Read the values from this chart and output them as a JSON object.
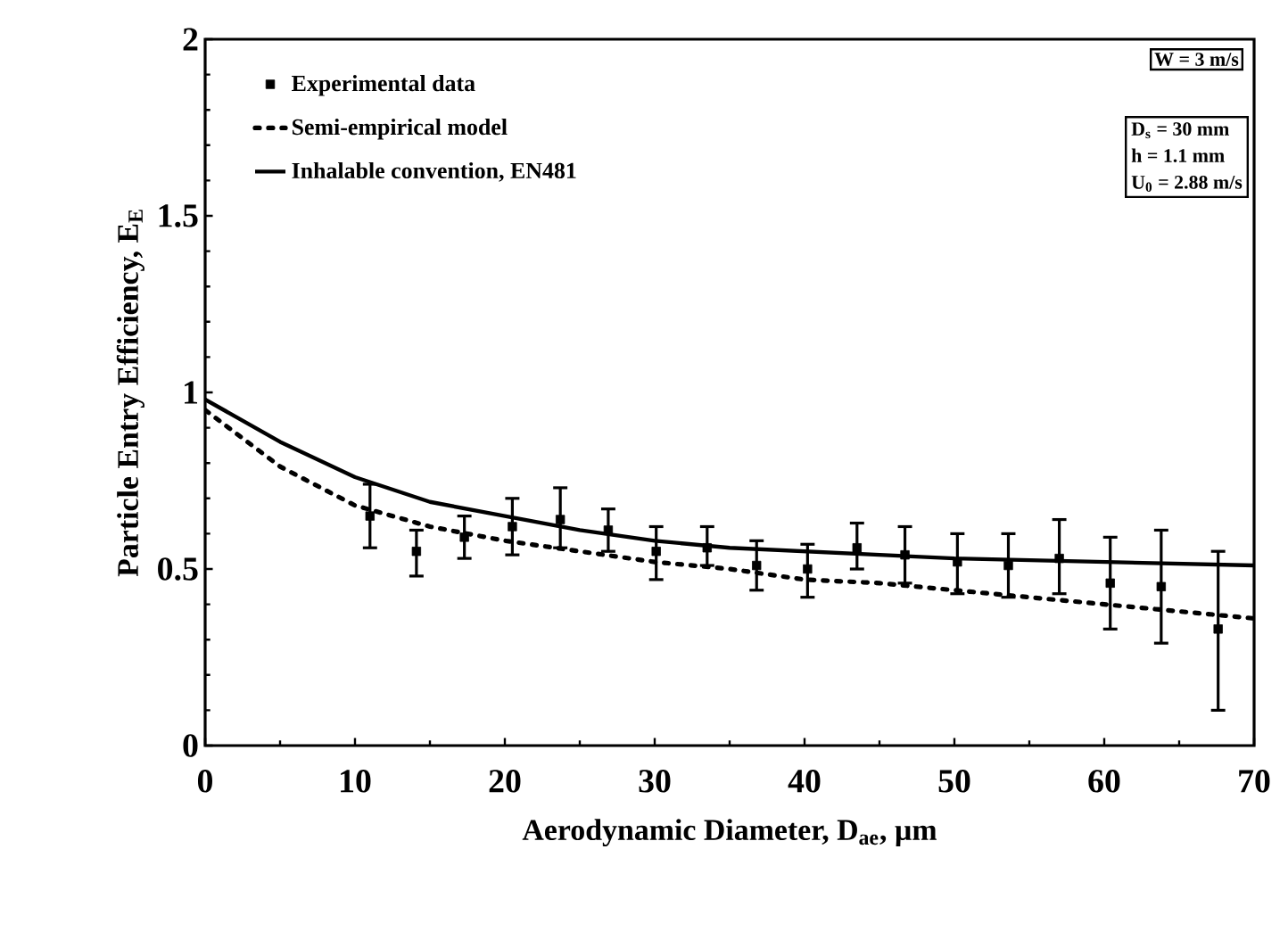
{
  "chart_data": {
    "type": "line",
    "xlabel": "Aerodynamic Diameter, D$_{ae}$, µm",
    "ylabel": "Particle Entry Efficiency, E$_{E}$",
    "annotations": [
      "W = 3 m/s",
      "D$_{s}$ = 30 mm",
      "h = 1.1 mm",
      "U$_{0}$ = 2.88 m/s"
    ],
    "xlim": [
      0,
      70
    ],
    "ylim": [
      0,
      2
    ],
    "xticks": [
      0,
      10,
      20,
      30,
      40,
      50,
      60,
      70
    ],
    "yticks": [
      0,
      0.5,
      1,
      1.5,
      2
    ],
    "grid": false,
    "legend": "top left",
    "series": [
      {
        "name": "Experimental data",
        "type": "scatter",
        "marker": "square",
        "color": "#000000",
        "x": [
          11.0,
          14.1,
          17.3,
          20.5,
          23.7,
          26.9,
          30.1,
          33.5,
          36.8,
          40.2,
          43.5,
          46.7,
          50.2,
          53.6,
          57.0,
          60.4,
          63.8,
          67.6
        ],
        "values": [
          0.65,
          0.55,
          0.59,
          0.62,
          0.64,
          0.61,
          0.55,
          0.56,
          0.51,
          0.5,
          0.56,
          0.54,
          0.52,
          0.51,
          0.53,
          0.46,
          0.45,
          0.33
        ],
        "errors": [
          [
            0.56,
            0.74
          ],
          [
            0.48,
            0.61
          ],
          [
            0.53,
            0.65
          ],
          [
            0.54,
            0.7
          ],
          [
            0.56,
            0.73
          ],
          [
            0.55,
            0.67
          ],
          [
            0.47,
            0.62
          ],
          [
            0.51,
            0.62
          ],
          [
            0.44,
            0.58
          ],
          [
            0.42,
            0.57
          ],
          [
            0.5,
            0.63
          ],
          [
            0.46,
            0.62
          ],
          [
            0.43,
            0.6
          ],
          [
            0.42,
            0.6
          ],
          [
            0.43,
            0.64
          ],
          [
            0.33,
            0.59
          ],
          [
            0.29,
            0.61
          ],
          [
            0.1,
            0.55
          ]
        ]
      },
      {
        "name": "Semi-empirical model",
        "line_style": "dotted",
        "marker": "none",
        "color": "#000000",
        "x": [
          0,
          5,
          10,
          15,
          20,
          25,
          30,
          35,
          40,
          45,
          50,
          55,
          60,
          65,
          70
        ],
        "values": [
          0.95,
          0.79,
          0.68,
          0.62,
          0.58,
          0.55,
          0.52,
          0.5,
          0.47,
          0.46,
          0.44,
          0.42,
          0.4,
          0.38,
          0.36
        ]
      },
      {
        "name": "Inhalable convention, EN481",
        "line_style": "solid",
        "marker": "none",
        "color": "#000000",
        "x": [
          0,
          5,
          10,
          15,
          20,
          25,
          30,
          35,
          40,
          50,
          60,
          70
        ],
        "values": [
          0.98,
          0.86,
          0.76,
          0.69,
          0.65,
          0.61,
          0.58,
          0.56,
          0.55,
          0.53,
          0.52,
          0.51
        ]
      }
    ]
  }
}
